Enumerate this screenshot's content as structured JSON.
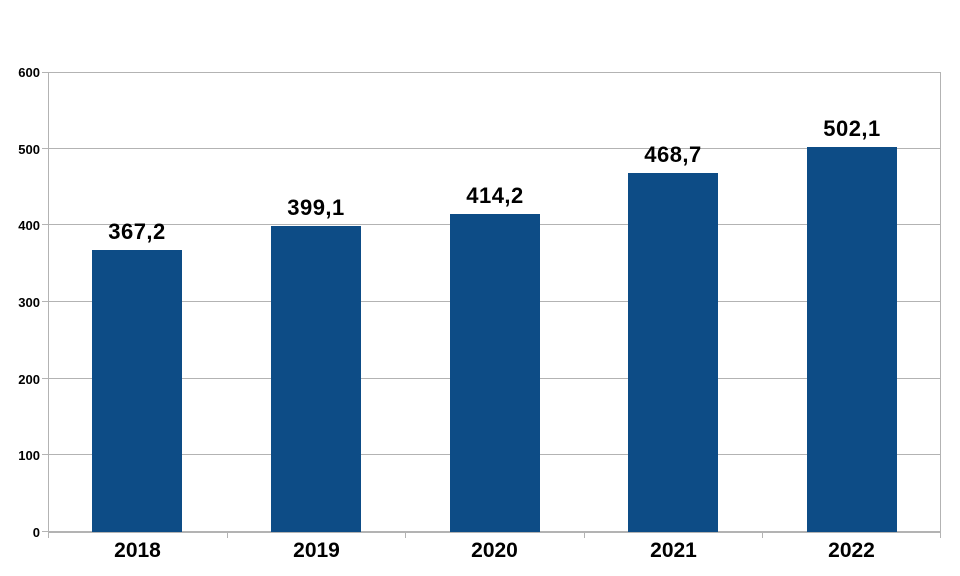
{
  "chart_data": {
    "type": "bar",
    "title": "",
    "xlabel": "",
    "ylabel": "",
    "categories": [
      "2018",
      "2019",
      "2020",
      "2021",
      "2022"
    ],
    "values": [
      367.2,
      399.1,
      414.2,
      468.7,
      502.1
    ],
    "value_labels": [
      "367,2",
      "399,1",
      "414,2",
      "468,7",
      "502,1"
    ],
    "ylim": [
      0,
      600
    ],
    "yticks": [
      0,
      100,
      200,
      300,
      400,
      500,
      600
    ],
    "ytick_labels": [
      "0",
      "100",
      "200",
      "300",
      "400",
      "500",
      "600"
    ],
    "grid": true,
    "legend_position": "none",
    "bar_color": "#0D4C86",
    "grid_color": "#B3B3B3",
    "text_color": "#000000",
    "background_color": "#FFFFFF"
  }
}
